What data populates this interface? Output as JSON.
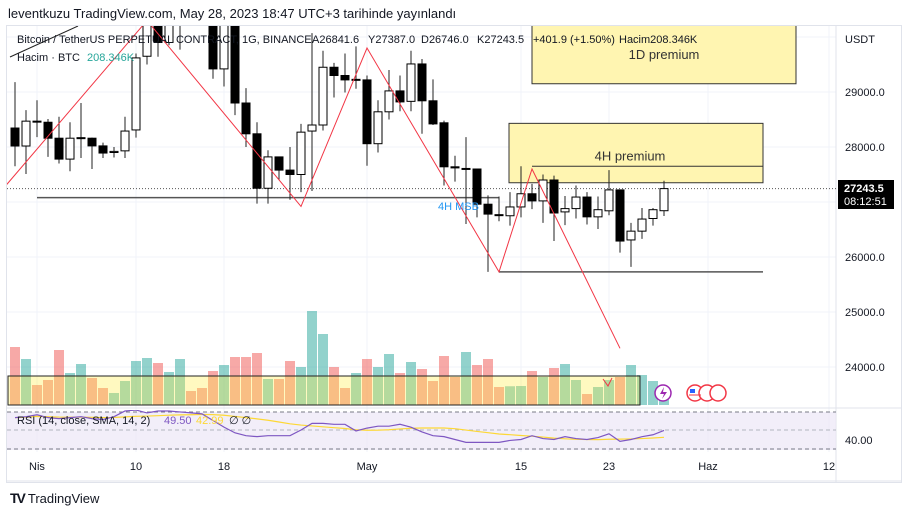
{
  "publish_line": "leventkuzu TradingView.com, May 28, 2023 18:47 UTC+3 tarihinde yayınlandı",
  "legend": {
    "symbol": "Bitcoin / TetherUS PERPETUAL CONTRACT, 1G, BINANCE",
    "open": "A26841.6",
    "high": "Y27387.0",
    "low": "D26746.0",
    "close": "K27243.5",
    "change": "+401.9 (+1.50%)",
    "volume": "Hacim208.346K",
    "volume_label": "Hacim · BTC",
    "volume_value": "208.346K"
  },
  "price_axis": {
    "currency": "USDT",
    "labels": [
      {
        "text": "29000.0",
        "price": 29000
      },
      {
        "text": "28000.0",
        "price": 28000
      },
      {
        "text": "26000.0",
        "price": 26000
      },
      {
        "text": "25000.0",
        "price": 25000
      },
      {
        "text": "24000.0",
        "price": 24000
      }
    ],
    "last_price": "27243.5",
    "countdown": "08:12:51"
  },
  "time_axis": [
    {
      "text": "Nis",
      "day": 2
    },
    {
      "text": "10",
      "day": 11
    },
    {
      "text": "18",
      "day": 19
    },
    {
      "text": "May",
      "day": 32
    },
    {
      "text": "15",
      "day": 46
    },
    {
      "text": "23",
      "day": 54
    },
    {
      "text": "Haz",
      "day": 63
    },
    {
      "text": "12",
      "day": 74
    }
  ],
  "annotations": {
    "premium_1d": "1D premium",
    "premium_4h": "4H premium",
    "msb_4h": "4H MSB"
  },
  "rsi": {
    "label": "RSI (14, close, SMA, 14, 2)",
    "value": "49.50",
    "sma_value": "42.99",
    "extra": "∅ ∅",
    "axis_label": "40.00",
    "series": [
      63,
      64,
      66,
      63,
      62,
      63,
      64,
      62,
      61,
      64,
      70,
      71,
      68,
      70,
      70,
      69,
      68,
      67,
      60,
      53,
      47,
      44,
      43,
      44,
      44,
      44,
      50,
      57,
      57,
      56,
      56,
      49,
      52,
      54,
      54,
      56,
      53,
      48,
      44,
      43,
      40,
      37,
      37,
      37,
      37,
      39,
      40,
      44,
      41,
      40,
      43,
      41,
      40,
      42,
      46,
      38,
      40,
      43,
      45,
      49.5
    ]
  },
  "colors": {
    "up": "#26a69a",
    "down": "#ef5350",
    "rsi": "#7e57c2",
    "rsi_sma": "#fdd835",
    "msb": "#2196f3",
    "zigzag": "#f23645"
  },
  "chart_data": {
    "type": "candlestick",
    "first_date": "2023-03-30",
    "ohlc": [
      [
        28345,
        29180,
        27650,
        28018
      ],
      [
        28018,
        28670,
        27510,
        28470
      ],
      [
        28470,
        28850,
        28180,
        28460
      ],
      [
        28450,
        28510,
        27820,
        28160
      ],
      [
        28160,
        28550,
        27700,
        27780
      ],
      [
        27780,
        28450,
        27560,
        28160
      ],
      [
        28160,
        28800,
        27800,
        28170
      ],
      [
        28160,
        28170,
        27600,
        28020
      ],
      [
        28020,
        28080,
        27800,
        27890
      ],
      [
        27900,
        28000,
        27810,
        27920
      ],
      [
        27930,
        28550,
        27800,
        28290
      ],
      [
        28310,
        29700,
        28170,
        29620
      ],
      [
        29650,
        30500,
        29500,
        30250
      ],
      [
        30300,
        30450,
        29640,
        29900
      ],
      [
        29900,
        30600,
        29850,
        30400
      ],
      [
        30400,
        31000,
        29770,
        30480
      ],
      [
        30480,
        30600,
        30250,
        30320
      ],
      [
        30320,
        30550,
        30220,
        30300
      ],
      [
        30300,
        30320,
        29240,
        29420
      ],
      [
        29420,
        30400,
        29100,
        30300
      ],
      [
        30300,
        30400,
        28580,
        28800
      ],
      [
        28800,
        29070,
        28000,
        28240
      ],
      [
        28240,
        28450,
        26970,
        27250
      ],
      [
        27250,
        27940,
        26970,
        27820
      ],
      [
        27820,
        27820,
        27400,
        27580
      ],
      [
        27580,
        28000,
        27040,
        27500
      ],
      [
        27500,
        28420,
        27180,
        28270
      ],
      [
        28290,
        30070,
        27200,
        28400
      ],
      [
        28400,
        29750,
        28300,
        29450
      ],
      [
        29450,
        29530,
        28900,
        29300
      ],
      [
        29300,
        29700,
        28990,
        29220
      ],
      [
        29220,
        29830,
        29060,
        29230
      ],
      [
        29220,
        29300,
        27660,
        28060
      ],
      [
        28060,
        28850,
        27900,
        28640
      ],
      [
        28640,
        29400,
        28500,
        29020
      ],
      [
        29020,
        29300,
        28650,
        28820
      ],
      [
        28830,
        29750,
        28650,
        29510
      ],
      [
        29510,
        29600,
        28240,
        28840
      ],
      [
        28840,
        29230,
        28400,
        28420
      ],
      [
        28440,
        28480,
        27300,
        27640
      ],
      [
        27640,
        27840,
        27370,
        27620
      ],
      [
        27600,
        28180,
        26600,
        27610
      ],
      [
        27600,
        27600,
        26720,
        26960
      ],
      [
        26960,
        27120,
        25730,
        26780
      ],
      [
        26770,
        27100,
        26650,
        26760
      ],
      [
        26750,
        27180,
        26570,
        26910
      ],
      [
        26910,
        27650,
        26720,
        27150
      ],
      [
        27150,
        27330,
        26870,
        27020
      ],
      [
        27020,
        27500,
        26620,
        27400
      ],
      [
        27400,
        27480,
        26290,
        26800
      ],
      [
        26820,
        27110,
        26580,
        26880
      ],
      [
        26880,
        27300,
        26700,
        27090
      ],
      [
        27090,
        27180,
        26590,
        26730
      ],
      [
        26730,
        27100,
        26510,
        26860
      ],
      [
        26840,
        27580,
        26760,
        27220
      ],
      [
        27220,
        27220,
        26080,
        26290
      ],
      [
        26310,
        26620,
        25820,
        26470
      ],
      [
        26470,
        26890,
        26330,
        26690
      ],
      [
        26700,
        26890,
        26570,
        26860
      ],
      [
        26841.6,
        27387,
        26746,
        27243.5
      ]
    ],
    "volume_k": [
      928,
      736,
      320,
      400,
      880,
      512,
      656,
      432,
      272,
      192,
      384,
      704,
      752,
      672,
      528,
      736,
      224,
      272,
      544,
      640,
      768,
      768,
      832,
      416,
      416,
      704,
      608,
      1504,
      1136,
      608,
      272,
      512,
      736,
      608,
      816,
      512,
      688,
      576,
      384,
      784,
      448,
      848,
      640,
      736,
      288,
      300,
      304,
      544,
      448,
      592,
      656,
      400,
      176,
      288,
      400,
      448,
      640,
      480,
      384,
      208.346
    ],
    "zigzag_prices": [
      [
        -1,
        27260
      ],
      [
        12,
        30300
      ],
      [
        26,
        26920
      ],
      [
        32,
        29800
      ],
      [
        44,
        25730
      ],
      [
        47,
        27600
      ],
      [
        55,
        24340
      ]
    ],
    "support_levels": [
      {
        "price": 27080,
        "from": 2,
        "to": 44
      },
      {
        "price": 25730,
        "from": 44,
        "to": 68
      }
    ],
    "premium_4h_box": {
      "top": 28430,
      "bottom": 27350,
      "mid": 27650,
      "from": 44,
      "to": 68
    },
    "premium_1d_box": {
      "top": 30300,
      "bottom": 29150,
      "from": 47,
      "to": 71
    }
  }
}
